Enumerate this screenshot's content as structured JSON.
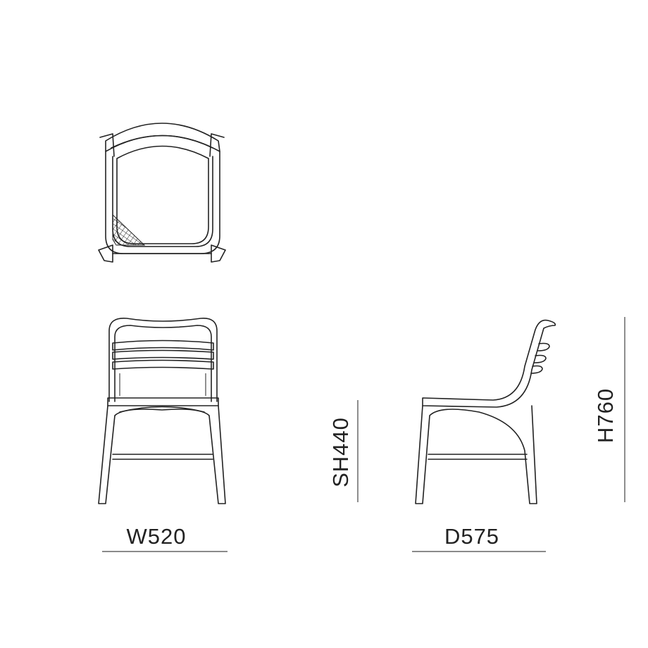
{
  "dimensions": {
    "width": "W520",
    "depth": "D575",
    "seat_height": "SH440",
    "height": "H760"
  }
}
